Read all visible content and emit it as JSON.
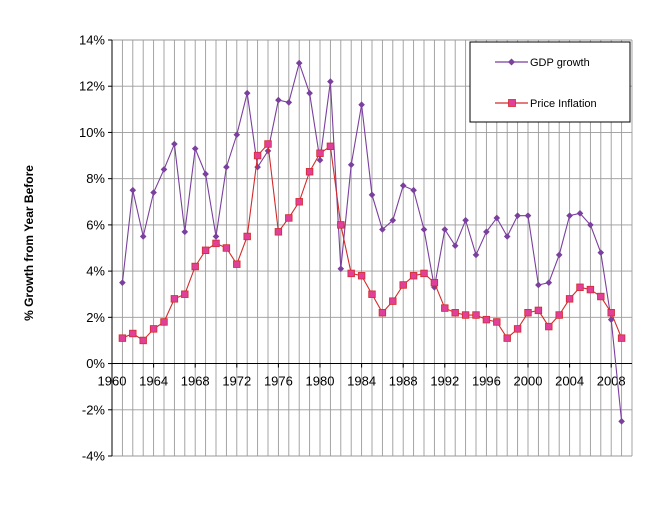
{
  "chart_data": {
    "type": "line",
    "ylabel": "% Growth from Year Before",
    "xlabel": "",
    "title": "",
    "xlim": [
      1960,
      2010
    ],
    "ylim": [
      -4,
      14
    ],
    "x_ticks": [
      1960,
      1964,
      1968,
      1972,
      1976,
      1980,
      1984,
      1988,
      1992,
      1996,
      2000,
      2004,
      2008
    ],
    "x_tick_labels": [
      "1960",
      "1964",
      "1968",
      "1972",
      "1976",
      "1980",
      "1984",
      "1988",
      "1992",
      "1996",
      "2000",
      "2004",
      "2008"
    ],
    "y_ticks": [
      -4,
      -2,
      0,
      2,
      4,
      6,
      8,
      10,
      12,
      14
    ],
    "y_tick_labels": [
      "-4%",
      "-2%",
      "0%",
      "2%",
      "4%",
      "6%",
      "8%",
      "10%",
      "12%",
      "14%"
    ],
    "grid": true,
    "legend_position": "top-right",
    "x": [
      1961,
      1962,
      1963,
      1964,
      1965,
      1966,
      1967,
      1968,
      1969,
      1970,
      1971,
      1972,
      1973,
      1974,
      1975,
      1976,
      1977,
      1978,
      1979,
      1980,
      1981,
      1982,
      1983,
      1984,
      1985,
      1986,
      1987,
      1988,
      1989,
      1990,
      1991,
      1992,
      1993,
      1994,
      1995,
      1996,
      1997,
      1998,
      1999,
      2000,
      2001,
      2002,
      2003,
      2004,
      2005,
      2006,
      2007,
      2008,
      2009
    ],
    "series": [
      {
        "name": "GDP growth",
        "color": "#7b3f9e",
        "marker": "diamond",
        "values": [
          3.5,
          7.5,
          5.5,
          7.4,
          8.4,
          9.5,
          5.7,
          9.3,
          8.2,
          5.5,
          8.5,
          9.9,
          11.7,
          8.5,
          9.2,
          11.4,
          11.3,
          13.0,
          11.7,
          8.8,
          12.2,
          4.1,
          8.6,
          11.2,
          7.3,
          5.8,
          6.2,
          7.7,
          7.5,
          5.8,
          3.3,
          5.8,
          5.1,
          6.2,
          4.7,
          5.7,
          6.3,
          5.5,
          6.4,
          6.4,
          3.4,
          3.5,
          4.7,
          6.4,
          6.5,
          6.0,
          4.8,
          1.9,
          -2.5
        ]
      },
      {
        "name": "Price Inflation",
        "color": "#d42a2a",
        "marker": "square",
        "marker_color": "#e0409a",
        "values": [
          1.1,
          1.3,
          1.0,
          1.5,
          1.8,
          2.8,
          3.0,
          4.2,
          4.9,
          5.2,
          5.0,
          4.3,
          5.5,
          9.0,
          9.5,
          5.7,
          6.3,
          7.0,
          8.3,
          9.1,
          9.4,
          6.0,
          3.9,
          3.8,
          3.0,
          2.2,
          2.7,
          3.4,
          3.8,
          3.9,
          3.5,
          2.4,
          2.2,
          2.1,
          2.1,
          1.9,
          1.8,
          1.1,
          1.5,
          2.2,
          2.3,
          1.6,
          2.1,
          2.8,
          3.3,
          3.2,
          2.9,
          2.2,
          1.1
        ]
      }
    ]
  }
}
